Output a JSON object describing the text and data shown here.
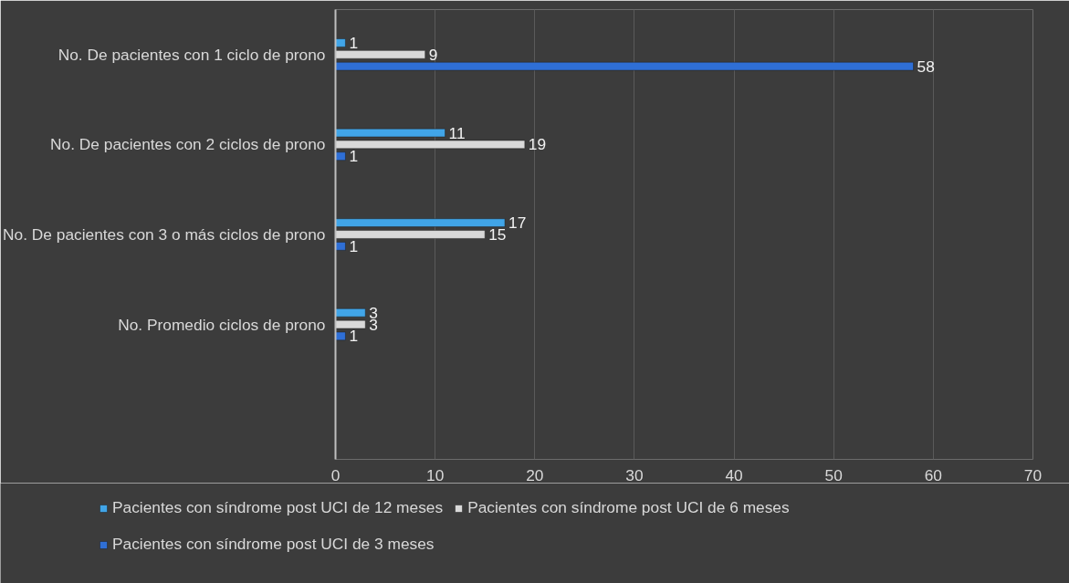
{
  "chart_data": {
    "type": "bar",
    "orientation": "horizontal",
    "categories": [
      "No. De pacientes con 1 ciclo de prono",
      "No. De pacientes con 2 ciclos de prono",
      "No. De pacientes con 3 o más ciclos de prono",
      "No. Promedio ciclos de prono",
      null
    ],
    "series": [
      {
        "name": "Pacientes con síndrome post UCI de 12 meses",
        "color": "#41a5e8",
        "values": [
          1,
          11,
          17,
          3,
          null
        ]
      },
      {
        "name": "Pacientes con síndrome post UCI de 6 meses",
        "color": "#d9d9d9",
        "values": [
          9,
          19,
          15,
          3,
          null
        ]
      },
      {
        "name": "Pacientes con síndrome post UCI de 3 meses",
        "color": "#2f6fd6",
        "values": [
          58,
          1,
          1,
          1,
          null
        ]
      }
    ],
    "xlim": [
      0,
      70
    ],
    "xticks": [
      0,
      10,
      20,
      30,
      40,
      50,
      60,
      70
    ],
    "grid": "x",
    "legend": "bottom",
    "data_labels": true
  }
}
